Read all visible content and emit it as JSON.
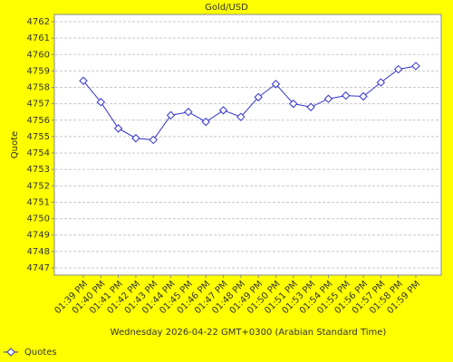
{
  "chart_data": {
    "type": "line",
    "title": "Gold/USD",
    "x_label": "Wednesday 2026-04-22 GMT+0300 (Arabian Standard Time)",
    "y_label": "Quote",
    "categories": [
      "01:39 PM",
      "01:40 PM",
      "01:41 PM",
      "01:42 PM",
      "01:43 PM",
      "01:44 PM",
      "01:45 PM",
      "01:46 PM",
      "01:47 PM",
      "01:48 PM",
      "01:49 PM",
      "01:50 PM",
      "01:51 PM",
      "01:53 PM",
      "01:54 PM",
      "01:55 PM",
      "01:56 PM",
      "01:57 PM",
      "01:58 PM",
      "01:59 PM"
    ],
    "series": [
      {
        "name": "Quotes",
        "color": "#3333cc",
        "values": [
          4758.4,
          4757.1,
          4755.5,
          4754.9,
          4754.8,
          4756.3,
          4756.5,
          4755.9,
          4756.6,
          4756.2,
          4757.4,
          4758.2,
          4757.0,
          4756.8,
          4757.3,
          4757.5,
          4757.45,
          4758.3,
          4759.1,
          4759.3
        ]
      }
    ],
    "ylim": [
      4746.56,
      4762.44
    ],
    "yticks": [
      4747,
      4748,
      4749,
      4750,
      4751,
      4752,
      4753,
      4754,
      4755,
      4756,
      4757,
      4758,
      4759,
      4760,
      4761,
      4762
    ],
    "grid": true,
    "legend": "bottom-left"
  }
}
